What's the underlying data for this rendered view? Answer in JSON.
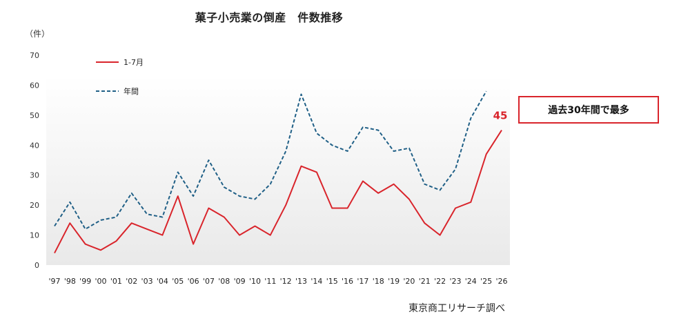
{
  "header": {
    "title": "菓子小売業の倒産　件数推移",
    "unit": "（件）"
  },
  "callout": {
    "text": "過去30年間で最多"
  },
  "source": {
    "text": "東京商工リサーチ調べ"
  },
  "colors": {
    "series1": "#d9242b",
    "series2": "#1f5f86",
    "plot_bg_top": "#ffffff",
    "plot_bg_bottom": "#e9e9e9"
  },
  "chart_data": {
    "type": "line",
    "title": "菓子小売業の倒産　件数推移",
    "ylabel": "（件）",
    "xlabel": "",
    "ylim": [
      0,
      70
    ],
    "yticks": [
      0,
      10,
      20,
      30,
      40,
      50,
      60,
      70
    ],
    "categories": [
      "'97",
      "'98",
      "'99",
      "'00",
      "'01",
      "'02",
      "'03",
      "'04",
      "'05",
      "'06",
      "'07",
      "'08",
      "'09",
      "'10",
      "'11",
      "'12",
      "'13",
      "'14",
      "'15",
      "'16",
      "'17",
      "'18",
      "'19",
      "'20",
      "'21",
      "'22",
      "'23",
      "'24",
      "'25",
      "'26"
    ],
    "series": [
      {
        "name": "1-7月",
        "style": "solid",
        "values": [
          4,
          14,
          7,
          5,
          8,
          14,
          12,
          10,
          23,
          7,
          19,
          16,
          10,
          13,
          10,
          20,
          33,
          31,
          19,
          19,
          28,
          24,
          27,
          22,
          14,
          10,
          19,
          21,
          37,
          45
        ]
      },
      {
        "name": "年間",
        "style": "dashed",
        "values": [
          13,
          21,
          12,
          15,
          16,
          24,
          17,
          16,
          31,
          23,
          35,
          26,
          23,
          22,
          27,
          38,
          57,
          44,
          40,
          38,
          46,
          45,
          38,
          39,
          27,
          25,
          32,
          49,
          58,
          null
        ]
      }
    ],
    "annotations": [
      {
        "series": 0,
        "category": "'26",
        "text": "45"
      }
    ],
    "legend_placement": "top-left",
    "grid": false
  }
}
